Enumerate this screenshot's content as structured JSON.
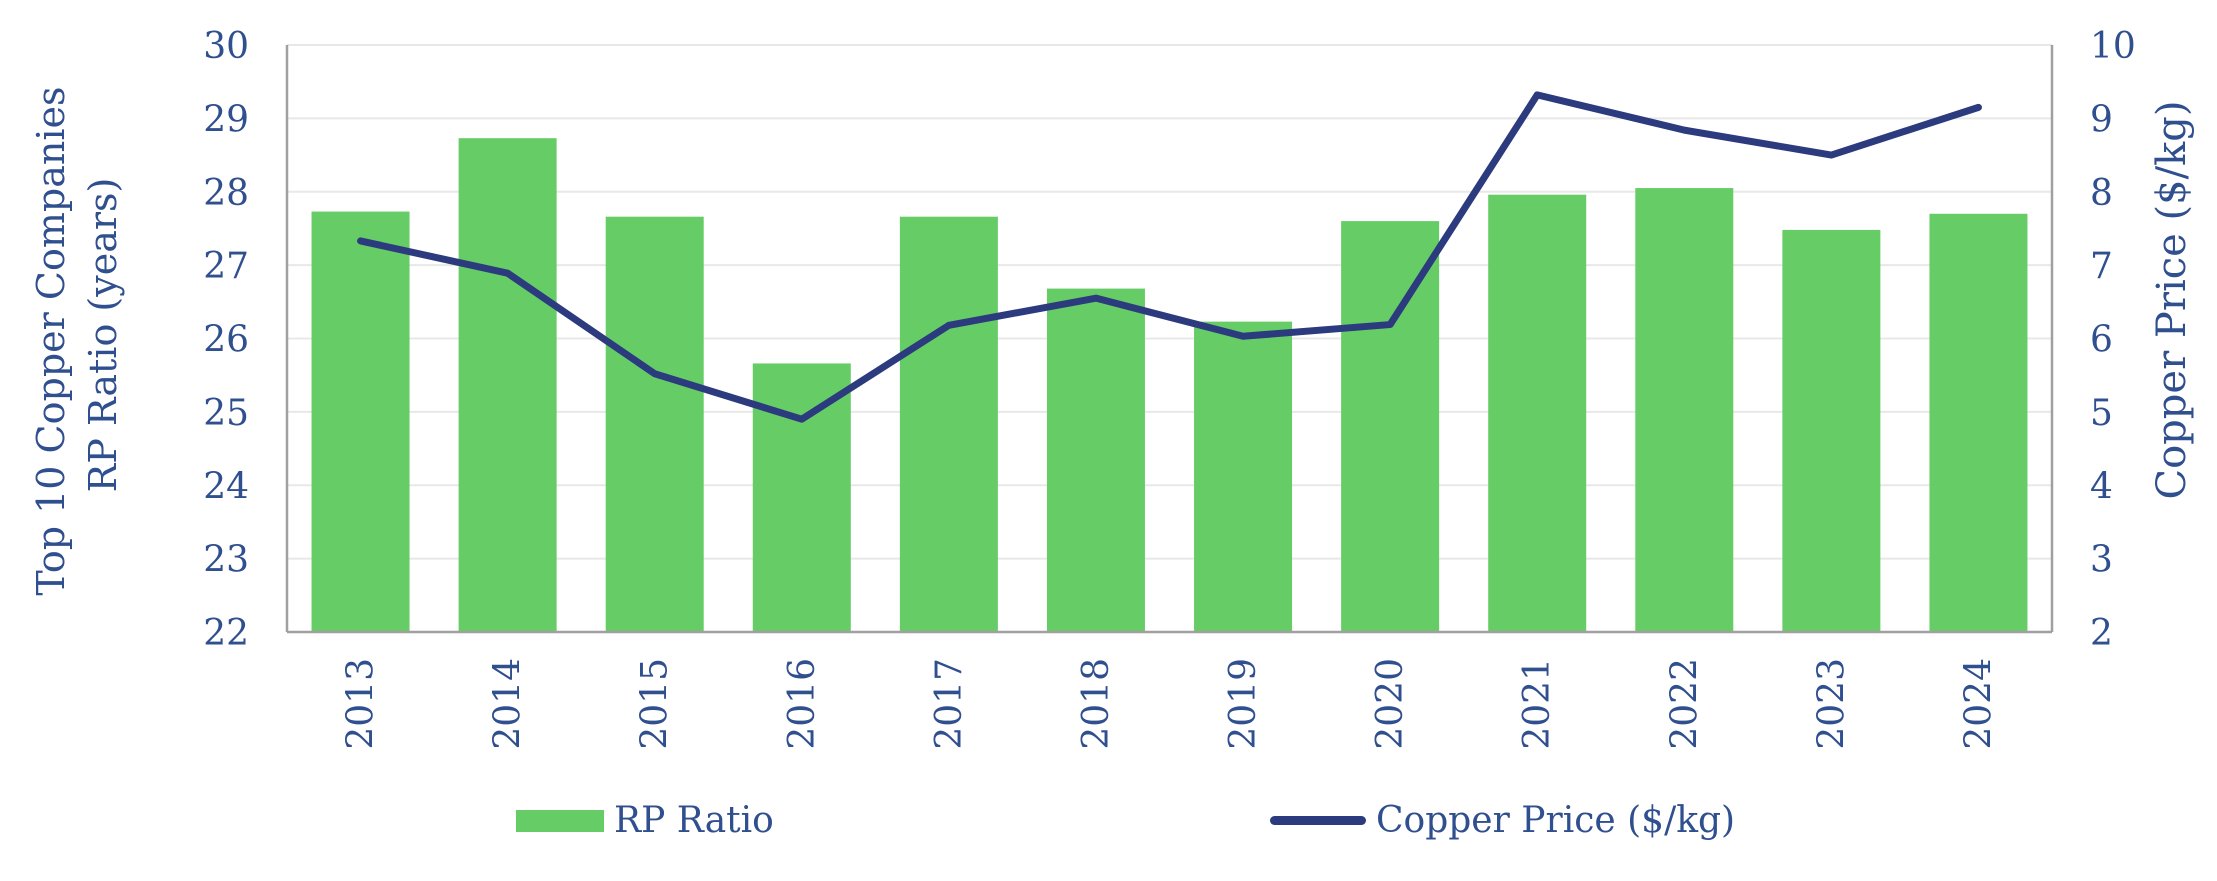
{
  "chart_data": {
    "type": "bar",
    "categories": [
      "2013",
      "2014",
      "2015",
      "2016",
      "2017",
      "2018",
      "2019",
      "2020",
      "2021",
      "2022",
      "2023",
      "2024"
    ],
    "series": [
      {
        "name": "RP Ratio",
        "type": "bar",
        "axis": "left",
        "values": [
          27.73,
          28.73,
          27.66,
          25.66,
          27.66,
          26.68,
          26.23,
          27.6,
          27.96,
          28.05,
          27.48,
          27.7
        ]
      },
      {
        "name": "Copper Price ($/kg)",
        "type": "line",
        "axis": "right",
        "values": [
          7.33,
          6.89,
          5.52,
          4.9,
          6.18,
          6.55,
          6.03,
          6.19,
          9.32,
          8.84,
          8.5,
          9.15
        ]
      }
    ],
    "ylabel": "Top 10 Copper Companies\nRP Ratio (years)",
    "ylabel_right": "Copper Price ($/kg)",
    "ylim": [
      22,
      30
    ],
    "ylim_right": [
      2,
      10
    ],
    "yticks": [
      "22",
      "23",
      "24",
      "25",
      "26",
      "27",
      "28",
      "29",
      "30"
    ],
    "yticks_right": [
      "2",
      "3",
      "4",
      "5",
      "6",
      "7",
      "8",
      "9",
      "10"
    ],
    "grid": true,
    "legend_position": "bottom",
    "colors": {
      "bar": "#66CC66",
      "line": "#2C3A7E",
      "text": "#2F4F8F",
      "grid": "#E8E8E8",
      "axis": "#A0A0A0"
    }
  }
}
